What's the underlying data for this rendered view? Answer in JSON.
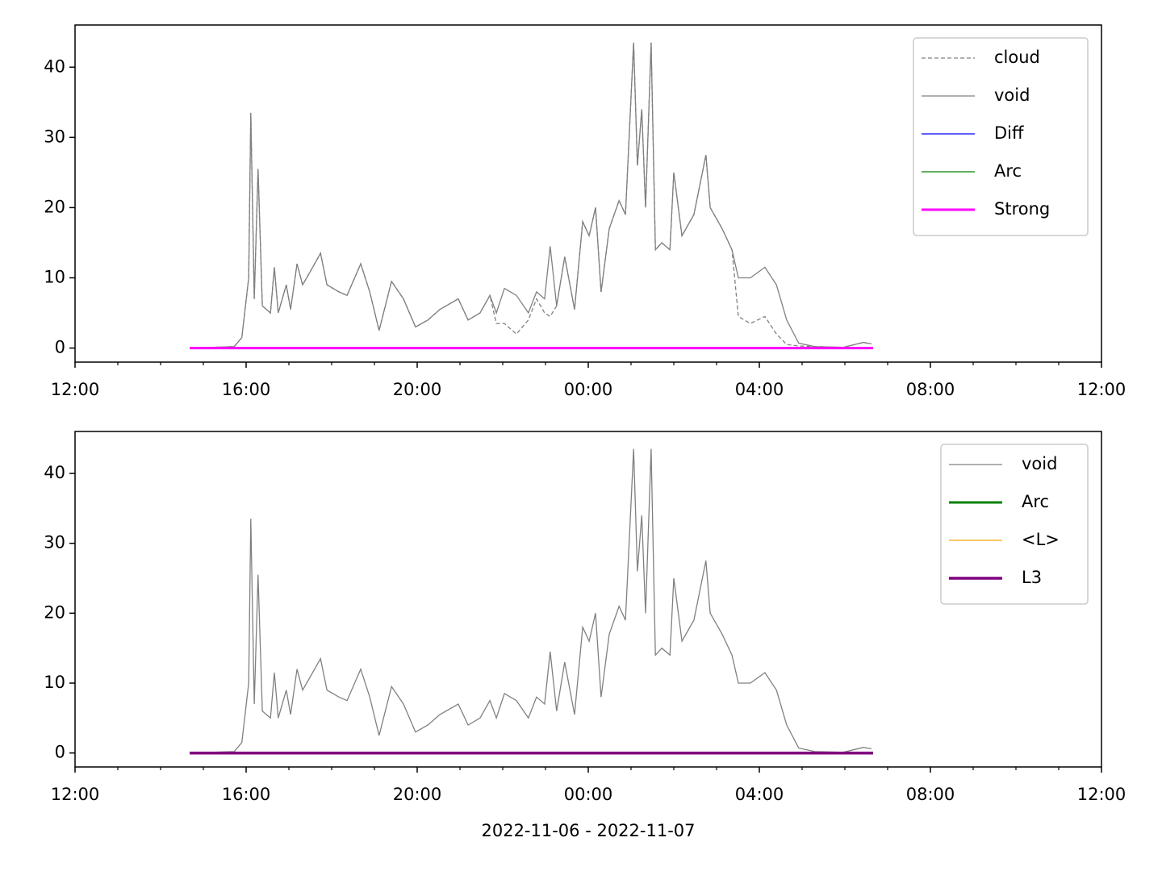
{
  "chart_data": [
    {
      "type": "line",
      "ylim": [
        -2,
        46
      ],
      "yticks": [
        0,
        10,
        20,
        30,
        40
      ],
      "xlim": [
        12,
        36
      ],
      "xticks": [
        {
          "value": 12,
          "label": "12:00"
        },
        {
          "value": 16,
          "label": "16:00"
        },
        {
          "value": 20,
          "label": "20:00"
        },
        {
          "value": 24,
          "label": "00:00"
        },
        {
          "value": 28,
          "label": "04:00"
        },
        {
          "value": 32,
          "label": "08:00"
        },
        {
          "value": 36,
          "label": "12:00"
        }
      ],
      "xminor": [
        13,
        14,
        15,
        17,
        18,
        19,
        21,
        22,
        23,
        25,
        26,
        27,
        29,
        30,
        31,
        33,
        34,
        35
      ],
      "legend": "upper right",
      "series": [
        {
          "name": "cloud",
          "color": "#808080",
          "width": 1.3,
          "dash": true,
          "x": [
            14.68,
            15.72,
            15.9,
            16.06,
            16.11,
            16.19,
            16.28,
            16.38,
            16.57,
            16.66,
            16.75,
            16.94,
            17.04,
            17.19,
            17.32,
            17.51,
            17.74,
            17.89,
            18.17,
            18.36,
            18.68,
            18.89,
            19.11,
            19.4,
            19.68,
            19.96,
            20.25,
            20.53,
            20.96,
            21.19,
            21.47,
            21.7,
            21.85,
            22.04,
            22.32,
            22.6,
            22.79,
            22.98,
            23.11,
            23.26,
            23.45,
            23.68,
            23.87,
            24.02,
            24.17,
            24.3,
            24.49,
            24.72,
            24.87,
            25.06,
            25.15,
            25.25,
            25.34,
            25.47,
            25.57,
            25.72,
            25.91,
            26.0,
            26.19,
            26.47,
            26.75,
            26.85,
            27.13,
            27.36,
            27.51,
            27.79,
            28.13,
            28.4,
            28.64,
            28.92,
            29.3,
            29.96,
            30.43,
            30.62
          ],
          "values": [
            0,
            0.2,
            1.5,
            10,
            33.5,
            7,
            25.5,
            6,
            5,
            11.5,
            5,
            9,
            5.5,
            12,
            9,
            11,
            13.5,
            9,
            8,
            7.5,
            12,
            8,
            2.5,
            9.5,
            7,
            3,
            4,
            5.5,
            7,
            4,
            5,
            7.5,
            3.5,
            3.5,
            2,
            4,
            7,
            5,
            4.5,
            6,
            13,
            5.5,
            18,
            16,
            20,
            8,
            17,
            21,
            19,
            43.5,
            26,
            34,
            20,
            43.5,
            14,
            15,
            14,
            25,
            16,
            19,
            27.5,
            20,
            17,
            14,
            4.5,
            3.5,
            4.5,
            2,
            0.5,
            0.3,
            0.2,
            0.1,
            0.8,
            0.6
          ]
        },
        {
          "name": "void",
          "color": "#808080",
          "width": 1.3,
          "x": [
            14.68,
            15.72,
            15.9,
            16.06,
            16.11,
            16.19,
            16.28,
            16.38,
            16.57,
            16.66,
            16.75,
            16.94,
            17.04,
            17.19,
            17.32,
            17.51,
            17.74,
            17.89,
            18.17,
            18.36,
            18.68,
            18.89,
            19.11,
            19.4,
            19.68,
            19.96,
            20.25,
            20.53,
            20.96,
            21.19,
            21.47,
            21.7,
            21.85,
            22.04,
            22.32,
            22.6,
            22.79,
            22.98,
            23.11,
            23.26,
            23.45,
            23.68,
            23.87,
            24.02,
            24.17,
            24.3,
            24.49,
            24.72,
            24.87,
            25.06,
            25.15,
            25.25,
            25.34,
            25.47,
            25.57,
            25.72,
            25.91,
            26.0,
            26.19,
            26.47,
            26.75,
            26.85,
            27.13,
            27.36,
            27.51,
            27.79,
            28.13,
            28.4,
            28.64,
            28.92,
            29.3,
            29.96,
            30.43,
            30.62
          ],
          "values": [
            0,
            0.2,
            1.5,
            10,
            33.5,
            7,
            25.5,
            6,
            5,
            11.5,
            5,
            9,
            5.5,
            12,
            9,
            11,
            13.5,
            9,
            8,
            7.5,
            12,
            8,
            2.5,
            9.5,
            7,
            3,
            4,
            5.5,
            7,
            4,
            5,
            7.5,
            5,
            8.5,
            7.5,
            5,
            8,
            7,
            14.5,
            6,
            13,
            5.5,
            18,
            16,
            20,
            8,
            17,
            21,
            19,
            43.5,
            26,
            34,
            20,
            43.5,
            14,
            15,
            14,
            25,
            16,
            19,
            27.5,
            20,
            17,
            14,
            10,
            10,
            11.5,
            9,
            4,
            0.7,
            0.2,
            0.1,
            0.8,
            0.6
          ]
        },
        {
          "name": "Diff",
          "color": "#0000ff",
          "width": 1.3,
          "x": [
            14.68,
            30.66
          ],
          "values": [
            0,
            0
          ]
        },
        {
          "name": "Arc",
          "color": "#008000",
          "width": 1.3,
          "x": [
            14.68,
            30.66
          ],
          "values": [
            0,
            0
          ]
        },
        {
          "name": "Strong",
          "color": "#ff00ff",
          "width": 3,
          "x": [
            14.68,
            30.66
          ],
          "values": [
            0,
            0
          ]
        }
      ]
    },
    {
      "type": "line",
      "ylim": [
        -2,
        46
      ],
      "yticks": [
        0,
        10,
        20,
        30,
        40
      ],
      "xlim": [
        12,
        36
      ],
      "xticks": [
        {
          "value": 12,
          "label": "12:00"
        },
        {
          "value": 16,
          "label": "16:00"
        },
        {
          "value": 20,
          "label": "20:00"
        },
        {
          "value": 24,
          "label": "00:00"
        },
        {
          "value": 28,
          "label": "04:00"
        },
        {
          "value": 32,
          "label": "08:00"
        },
        {
          "value": 36,
          "label": "12:00"
        }
      ],
      "xminor": [
        13,
        14,
        15,
        17,
        18,
        19,
        21,
        22,
        23,
        25,
        26,
        27,
        29,
        30,
        31,
        33,
        34,
        35
      ],
      "xlabel": "2022-11-06 - 2022-11-07",
      "legend": "upper right",
      "series": [
        {
          "name": "void",
          "color": "#808080",
          "width": 1.3,
          "x": [
            14.68,
            15.72,
            15.9,
            16.06,
            16.11,
            16.19,
            16.28,
            16.38,
            16.57,
            16.66,
            16.75,
            16.94,
            17.04,
            17.19,
            17.32,
            17.51,
            17.74,
            17.89,
            18.17,
            18.36,
            18.68,
            18.89,
            19.11,
            19.4,
            19.68,
            19.96,
            20.25,
            20.53,
            20.96,
            21.19,
            21.47,
            21.7,
            21.85,
            22.04,
            22.32,
            22.6,
            22.79,
            22.98,
            23.11,
            23.26,
            23.45,
            23.68,
            23.87,
            24.02,
            24.17,
            24.3,
            24.49,
            24.72,
            24.87,
            25.06,
            25.15,
            25.25,
            25.34,
            25.47,
            25.57,
            25.72,
            25.91,
            26.0,
            26.19,
            26.47,
            26.75,
            26.85,
            27.13,
            27.36,
            27.51,
            27.79,
            28.13,
            28.4,
            28.64,
            28.92,
            29.3,
            29.96,
            30.43,
            30.62
          ],
          "values": [
            0,
            0.2,
            1.5,
            10,
            33.5,
            7,
            25.5,
            6,
            5,
            11.5,
            5,
            9,
            5.5,
            12,
            9,
            11,
            13.5,
            9,
            8,
            7.5,
            12,
            8,
            2.5,
            9.5,
            7,
            3,
            4,
            5.5,
            7,
            4,
            5,
            7.5,
            5,
            8.5,
            7.5,
            5,
            8,
            7,
            14.5,
            6,
            13,
            5.5,
            18,
            16,
            20,
            8,
            17,
            21,
            19,
            43.5,
            26,
            34,
            20,
            43.5,
            14,
            15,
            14,
            25,
            16,
            19,
            27.5,
            20,
            17,
            14,
            10,
            10,
            11.5,
            9,
            4,
            0.7,
            0.2,
            0.1,
            0.8,
            0.6
          ]
        },
        {
          "name": "Arc",
          "color": "#008000",
          "width": 3,
          "x": [
            14.68,
            30.66
          ],
          "values": [
            0,
            0
          ]
        },
        {
          "name": "<L>",
          "color": "#ffa500",
          "width": 1.3,
          "x": [
            14.68,
            30.66
          ],
          "values": [
            0,
            0
          ]
        },
        {
          "name": "L3",
          "color": "#800080",
          "width": 3.5,
          "x": [
            14.68,
            30.66
          ],
          "values": [
            0,
            0
          ]
        }
      ]
    }
  ]
}
